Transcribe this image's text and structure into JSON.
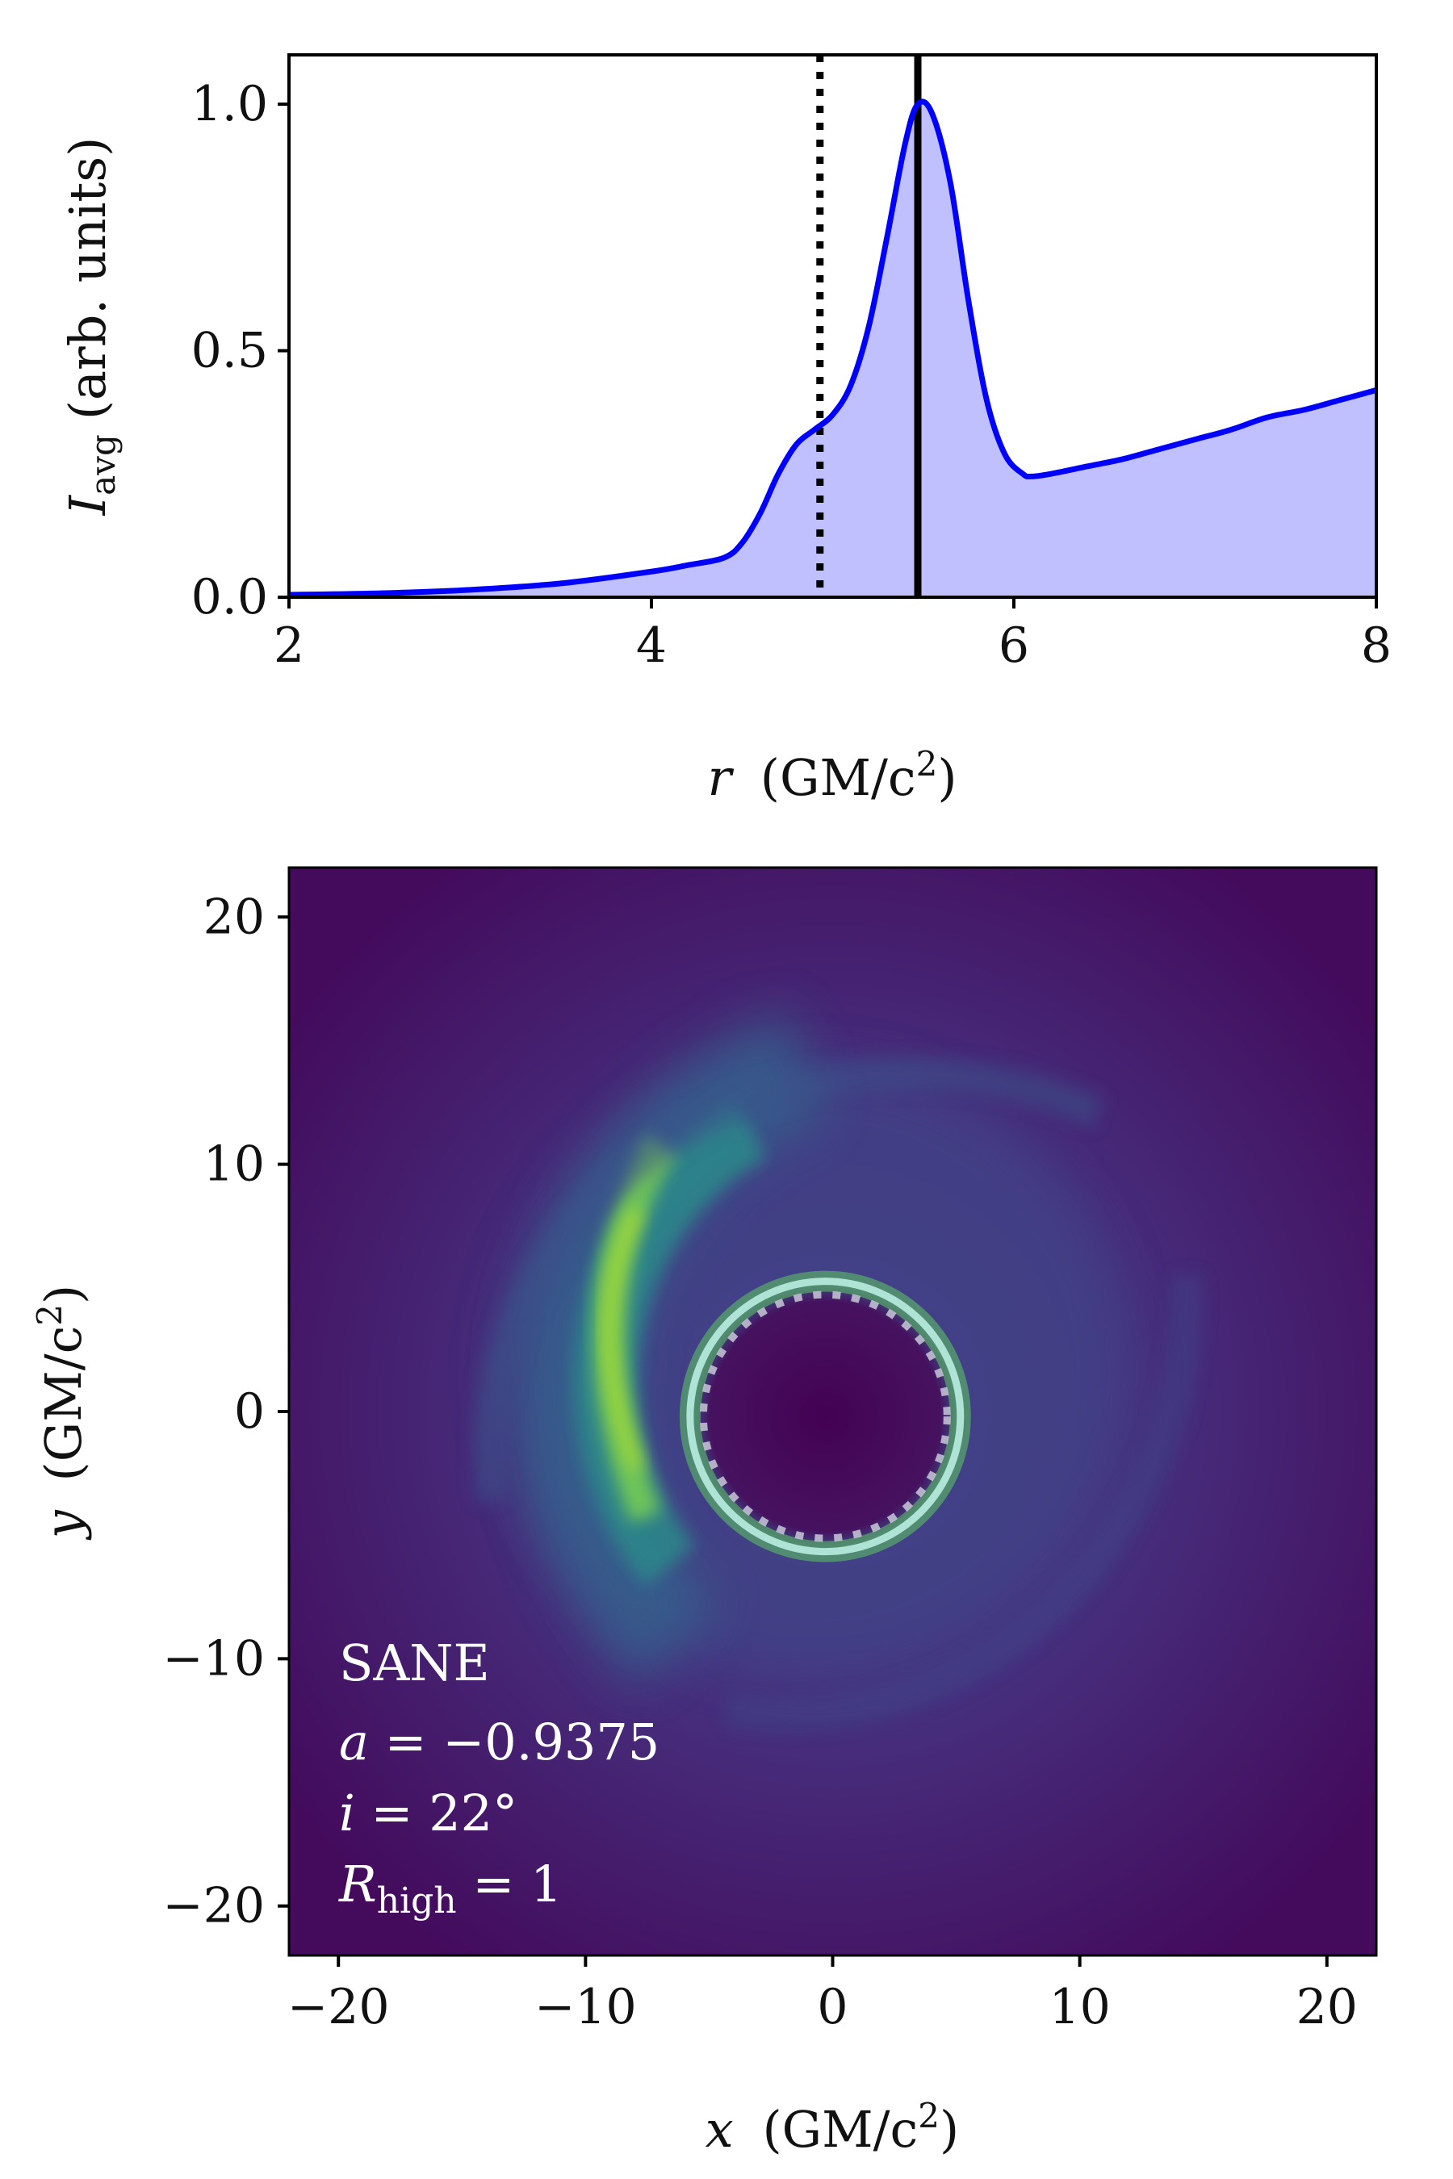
{
  "chart_data": [
    {
      "type": "area",
      "xlim": [
        2,
        8
      ],
      "ylim": [
        0,
        1.1
      ],
      "x_ticks": [
        2,
        4,
        6,
        8
      ],
      "y_ticks": [
        0.0,
        0.5,
        1.0
      ],
      "x_tick_labels": [
        "2",
        "4",
        "6",
        "8"
      ],
      "y_tick_labels": [
        "0.0",
        "0.5",
        "1.0"
      ],
      "xlabel": {
        "var": "r",
        "units": "(GM/c",
        "sup": "2",
        "close": ")"
      },
      "ylabel": {
        "var": "I",
        "sub": "avg",
        "units": "(arb. units)"
      },
      "grid": false,
      "series": [
        {
          "color": "#0000ff",
          "fill": "#c0c0ff",
          "x": [
            2.0,
            2.5,
            3.0,
            3.5,
            4.0,
            4.2,
            4.4,
            4.5,
            4.6,
            4.7,
            4.8,
            4.9,
            5.0,
            5.1,
            5.2,
            5.3,
            5.4,
            5.47,
            5.55,
            5.65,
            5.75,
            5.85,
            5.95,
            6.05,
            6.1,
            6.2,
            6.4,
            6.6,
            6.8,
            7.0,
            7.2,
            7.4,
            7.6,
            7.8,
            8.0
          ],
          "y": [
            0.005,
            0.008,
            0.015,
            0.028,
            0.052,
            0.065,
            0.08,
            0.11,
            0.17,
            0.25,
            0.31,
            0.34,
            0.37,
            0.43,
            0.55,
            0.73,
            0.92,
            1.0,
            0.98,
            0.84,
            0.6,
            0.4,
            0.29,
            0.25,
            0.245,
            0.25,
            0.265,
            0.28,
            0.3,
            0.32,
            0.34,
            0.365,
            0.38,
            0.4,
            0.42
          ]
        }
      ],
      "vlines": [
        {
          "x": 4.93,
          "style": "dotted",
          "color": "#000000"
        },
        {
          "x": 5.47,
          "style": "solid",
          "color": "#000000"
        }
      ]
    },
    {
      "type": "heatmap",
      "colormap": "viridis",
      "xlim": [
        -22,
        22
      ],
      "ylim": [
        -22,
        22
      ],
      "x_ticks": [
        -20,
        -10,
        0,
        10,
        20
      ],
      "y_ticks": [
        -20,
        -10,
        0,
        10,
        20
      ],
      "x_tick_labels": [
        "−20",
        "−10",
        "0",
        "10",
        "20"
      ],
      "y_tick_labels": [
        "−20",
        "−10",
        "0",
        "10",
        "20"
      ],
      "xlabel": {
        "var": "x",
        "units": "(GM/c",
        "sup": "2",
        "close": ")"
      },
      "ylabel": {
        "var": "y",
        "units": "(GM/c",
        "sup": "2",
        "close": ")"
      },
      "ring": {
        "center": [
          -0.3,
          -0.2
        ],
        "radius": 5.47
      },
      "inner_ring_dotted": {
        "center": [
          -0.3,
          -0.2
        ],
        "radius": 4.93
      },
      "bright_crescent_angle_deg": 180,
      "annotations": [
        {
          "text": "SANE"
        },
        {
          "var": "a",
          "rel": " = ",
          "val": "−0.9375"
        },
        {
          "var": "i",
          "rel": " = ",
          "val": "22°"
        },
        {
          "var": "R",
          "sub": "high",
          "rel": " = ",
          "val": "1"
        }
      ]
    }
  ]
}
